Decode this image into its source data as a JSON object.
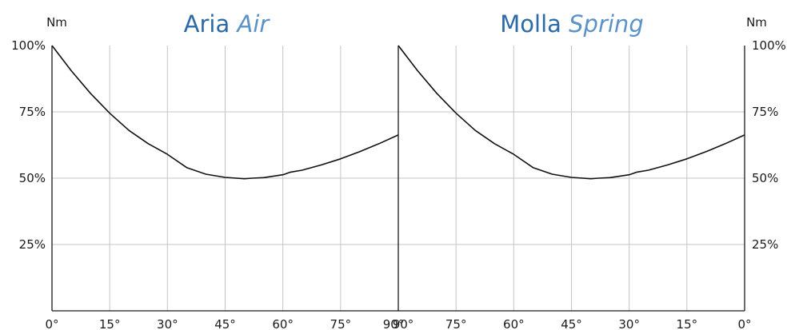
{
  "chart_data": [
    {
      "type": "line",
      "title_main": "Aria",
      "title_italic": "Air",
      "ylabel": "Nm",
      "y_axis_side": "left",
      "x_direction": "ascending",
      "x_ticks": [
        "0°",
        "15°",
        "30°",
        "45°",
        "60°",
        "75°",
        "90°"
      ],
      "xlim": [
        0,
        90
      ],
      "y_ticks": [
        "25%",
        "50%",
        "75%",
        "100%"
      ],
      "ylim": [
        0,
        100
      ],
      "grid": true,
      "series": [
        {
          "x": [
            0,
            5,
            10,
            15,
            20,
            25,
            30,
            35,
            40,
            45,
            50,
            52,
            55,
            60,
            62,
            65,
            70,
            75,
            80,
            85,
            90
          ],
          "y": [
            100,
            90.5,
            82,
            74.5,
            68,
            63,
            59,
            54,
            51.5,
            50.3,
            49.8,
            50,
            50.2,
            51.3,
            52.3,
            53,
            55,
            57.3,
            60,
            63,
            66.3
          ]
        }
      ]
    },
    {
      "type": "line",
      "title_main": "Molla",
      "title_italic": "Spring",
      "ylabel": "Nm",
      "y_axis_side": "right",
      "x_direction": "descending",
      "x_ticks": [
        "90°",
        "75°",
        "60°",
        "45°",
        "30°",
        "15°",
        "0°"
      ],
      "xlim": [
        90,
        0
      ],
      "y_ticks": [
        "25%",
        "50%",
        "75%",
        "100%"
      ],
      "ylim": [
        0,
        100
      ],
      "grid": true,
      "series": [
        {
          "x": [
            90,
            85,
            80,
            75,
            70,
            65,
            60,
            55,
            50,
            45,
            40,
            38,
            35,
            30,
            28,
            25,
            20,
            15,
            10,
            5,
            0
          ],
          "y": [
            100,
            90.5,
            82,
            74.5,
            68,
            63,
            59,
            54,
            51.5,
            50.3,
            49.8,
            50,
            50.2,
            51.3,
            52.3,
            53,
            55,
            57.3,
            60,
            63,
            66.3
          ]
        }
      ]
    }
  ]
}
